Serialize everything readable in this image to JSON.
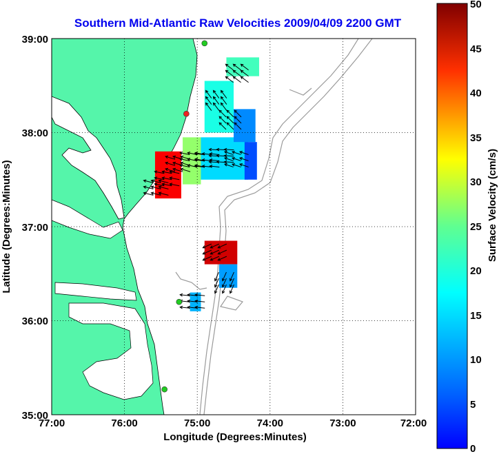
{
  "title": "Southern Mid-Atlantic Raw Velocities 2009/04/09 2200 GMT",
  "x_axis": {
    "label": "Longitude (Degrees:Minutes)",
    "ticks": [
      "77:00",
      "76:00",
      "75:00",
      "74:00",
      "73:00",
      "72:00"
    ]
  },
  "y_axis": {
    "label": "Latitude (Degrees:Minutes)",
    "ticks": [
      "39:00",
      "38:00",
      "37:00",
      "36:00",
      "35:00"
    ]
  },
  "colorbar": {
    "label": "Surface Velocity (cm/s)",
    "ticks": [
      "50",
      "45",
      "40",
      "35",
      "30",
      "25",
      "20",
      "15",
      "10",
      "5",
      "0"
    ],
    "range": [
      0,
      50
    ],
    "colormap": "jet"
  },
  "colors": {
    "land": "#55f5aa",
    "water": "#ffffff",
    "coastline": "#000000",
    "bathymetry": "#9a9a9a",
    "title": "#0000ee",
    "grid": "#000000"
  },
  "map": {
    "lon_range": [
      -77,
      -72
    ],
    "lat_range": [
      35,
      39
    ],
    "grid": "dotted",
    "stations": [
      {
        "lon": -74.9,
        "lat": 38.95,
        "color": "#22cc22"
      },
      {
        "lon": -75.15,
        "lat": 38.2,
        "color": "#ee2222"
      },
      {
        "lon": -75.25,
        "lat": 36.2,
        "color": "#22cc22"
      },
      {
        "lon": -75.45,
        "lat": 35.27,
        "color": "#22cc22"
      }
    ]
  },
  "chart_data": {
    "type": "heatmap",
    "title": "Southern Mid-Atlantic Raw Velocities 2009/04/09 2200 GMT",
    "xlabel": "Longitude (Degrees:Minutes)",
    "ylabel": "Latitude (Degrees:Minutes)",
    "xlim": [
      -77,
      -72
    ],
    "ylim": [
      35,
      39
    ],
    "colorbar_label": "Surface Velocity (cm/s)",
    "clim": [
      0,
      50
    ],
    "regions": [
      {
        "lon": [
          -75.58,
          -75.22
        ],
        "lat": [
          37.3,
          37.8
        ],
        "speed": 44
      },
      {
        "lon": [
          -75.2,
          -74.95
        ],
        "lat": [
          37.45,
          37.95
        ],
        "speed": 26
      },
      {
        "lon": [
          -74.95,
          -74.3
        ],
        "lat": [
          37.5,
          37.95
        ],
        "speed": 17
      },
      {
        "lon": [
          -74.35,
          -74.18
        ],
        "lat": [
          37.5,
          37.9
        ],
        "speed": 10
      },
      {
        "lon": [
          -74.9,
          -74.5
        ],
        "lat": [
          38.0,
          38.55
        ],
        "speed": 20
      },
      {
        "lon": [
          -74.5,
          -74.2
        ],
        "lat": [
          37.9,
          38.25
        ],
        "speed": 13
      },
      {
        "lon": [
          -74.6,
          -74.15
        ],
        "lat": [
          38.6,
          38.8
        ],
        "speed": 22
      },
      {
        "lon": [
          -74.9,
          -74.45
        ],
        "lat": [
          36.6,
          36.85
        ],
        "speed": 46
      },
      {
        "lon": [
          -74.7,
          -74.45
        ],
        "lat": [
          36.35,
          36.6
        ],
        "speed": 14
      },
      {
        "lon": [
          -75.1,
          -74.95
        ],
        "lat": [
          36.1,
          36.3
        ],
        "speed": 15
      }
    ],
    "vectors": [
      {
        "lon": -75.5,
        "lat": 37.4,
        "u": -1.0,
        "v": 0.25
      },
      {
        "lon": -75.35,
        "lat": 37.5,
        "u": -1.0,
        "v": 0.2
      },
      {
        "lon": -75.2,
        "lat": 37.65,
        "u": -1.0,
        "v": 0.3
      },
      {
        "lon": -75.0,
        "lat": 37.7,
        "u": -1.0,
        "v": 0.2
      },
      {
        "lon": -74.8,
        "lat": 37.7,
        "u": -1.0,
        "v": 0.1
      },
      {
        "lon": -74.6,
        "lat": 37.75,
        "u": -1.0,
        "v": 0.05
      },
      {
        "lon": -74.4,
        "lat": 37.7,
        "u": -0.9,
        "v": 0.3
      },
      {
        "lon": -74.5,
        "lat": 38.1,
        "u": -0.7,
        "v": 0.7
      },
      {
        "lon": -74.7,
        "lat": 38.3,
        "u": -0.6,
        "v": 0.8
      },
      {
        "lon": -74.4,
        "lat": 38.6,
        "u": -0.8,
        "v": 0.6
      },
      {
        "lon": -74.7,
        "lat": 36.75,
        "u": -0.9,
        "v": -0.4
      },
      {
        "lon": -74.6,
        "lat": 36.45,
        "u": -0.4,
        "v": -0.9
      },
      {
        "lon": -75.0,
        "lat": 36.2,
        "u": -1.0,
        "v": 0.1
      }
    ]
  }
}
